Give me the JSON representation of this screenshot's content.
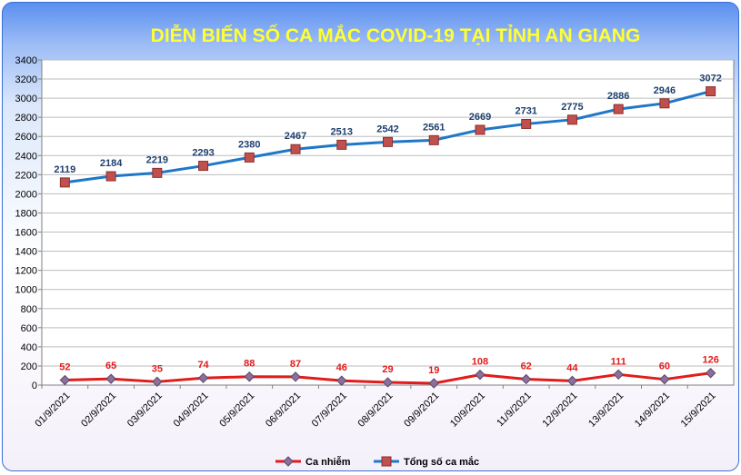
{
  "chart_data": {
    "type": "line",
    "title": "DIỄN BIẾN SỐ CA MẮC COVID-19 TẠI TỈNH AN GIANG",
    "categories": [
      "01/9/2021",
      "02/9/2021",
      "03/9/2021",
      "04/9/2021",
      "05/9/2021",
      "06/9/2021",
      "07/9/2021",
      "08/9/2021",
      "09/9/2021",
      "10/9/2021",
      "11/9/2021",
      "12/9/2021",
      "13/9/2021",
      "14/9/2021",
      "15/9/2021"
    ],
    "series": [
      {
        "name": "Ca nhiễm",
        "color": "#e21b1b",
        "marker": "diamond",
        "values": [
          52,
          65,
          35,
          74,
          88,
          87,
          46,
          29,
          19,
          108,
          62,
          44,
          111,
          60,
          126
        ]
      },
      {
        "name": "Tổng số ca mắc",
        "color": "#1f77c8",
        "marker": "square",
        "values": [
          2119,
          2184,
          2219,
          2293,
          2380,
          2467,
          2513,
          2542,
          2561,
          2669,
          2731,
          2775,
          2886,
          2946,
          3072
        ]
      }
    ],
    "ylim": [
      0,
      3400
    ],
    "ytick_step": 200,
    "grid": true,
    "legend": "bottom"
  }
}
